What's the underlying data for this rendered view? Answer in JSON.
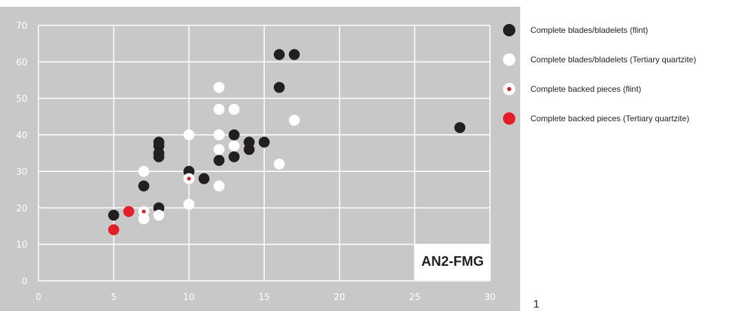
{
  "chart_data": {
    "type": "scatter",
    "title": "",
    "xlabel": "",
    "ylabel": "",
    "xlim": [
      0,
      30
    ],
    "ylim": [
      0,
      70
    ],
    "x_ticks": [
      "0",
      "5",
      "10",
      "15",
      "20",
      "25",
      "30"
    ],
    "y_ticks": [
      "0",
      "10",
      "20",
      "30",
      "40",
      "50",
      "60",
      "70"
    ],
    "grid": true,
    "legend_position": "right",
    "plot_background": "#c8c8c8",
    "series": [
      {
        "name": "Complete blades/bladelets (flint)",
        "color": "#231f20",
        "marker": "filled-circle",
        "points": [
          [
            5,
            18
          ],
          [
            7,
            26
          ],
          [
            8,
            20
          ],
          [
            8,
            34
          ],
          [
            8,
            35
          ],
          [
            8,
            37
          ],
          [
            8,
            38
          ],
          [
            10,
            30
          ],
          [
            11,
            28
          ],
          [
            12,
            33
          ],
          [
            13,
            34
          ],
          [
            13,
            40
          ],
          [
            14,
            36
          ],
          [
            14,
            38
          ],
          [
            15,
            38
          ],
          [
            16,
            53
          ],
          [
            16,
            62
          ],
          [
            17,
            62
          ],
          [
            28,
            42
          ]
        ]
      },
      {
        "name": "Complete blades/bladelets (Tertiary quartzite)",
        "color": "#ffffff",
        "marker": "filled-circle",
        "points": [
          [
            7,
            17
          ],
          [
            7,
            30
          ],
          [
            8,
            18
          ],
          [
            10,
            21
          ],
          [
            10,
            40
          ],
          [
            12,
            26
          ],
          [
            12,
            36
          ],
          [
            12,
            40
          ],
          [
            12,
            47
          ],
          [
            12,
            53
          ],
          [
            13,
            37
          ],
          [
            13,
            47
          ],
          [
            16,
            32
          ],
          [
            17,
            44
          ]
        ]
      },
      {
        "name": "Complete backed pieces (flint)",
        "color": "#e41e26",
        "marker": "white-circle-red-dot",
        "points": [
          [
            7,
            19
          ],
          [
            10,
            28
          ]
        ]
      },
      {
        "name": "Complete backed pieces (Tertiary quartzite)",
        "color": "#e41e26",
        "marker": "filled-circle",
        "points": [
          [
            5,
            14
          ],
          [
            6,
            19
          ]
        ]
      }
    ]
  },
  "badge_label": "AN2-FMG",
  "page_number": "1"
}
